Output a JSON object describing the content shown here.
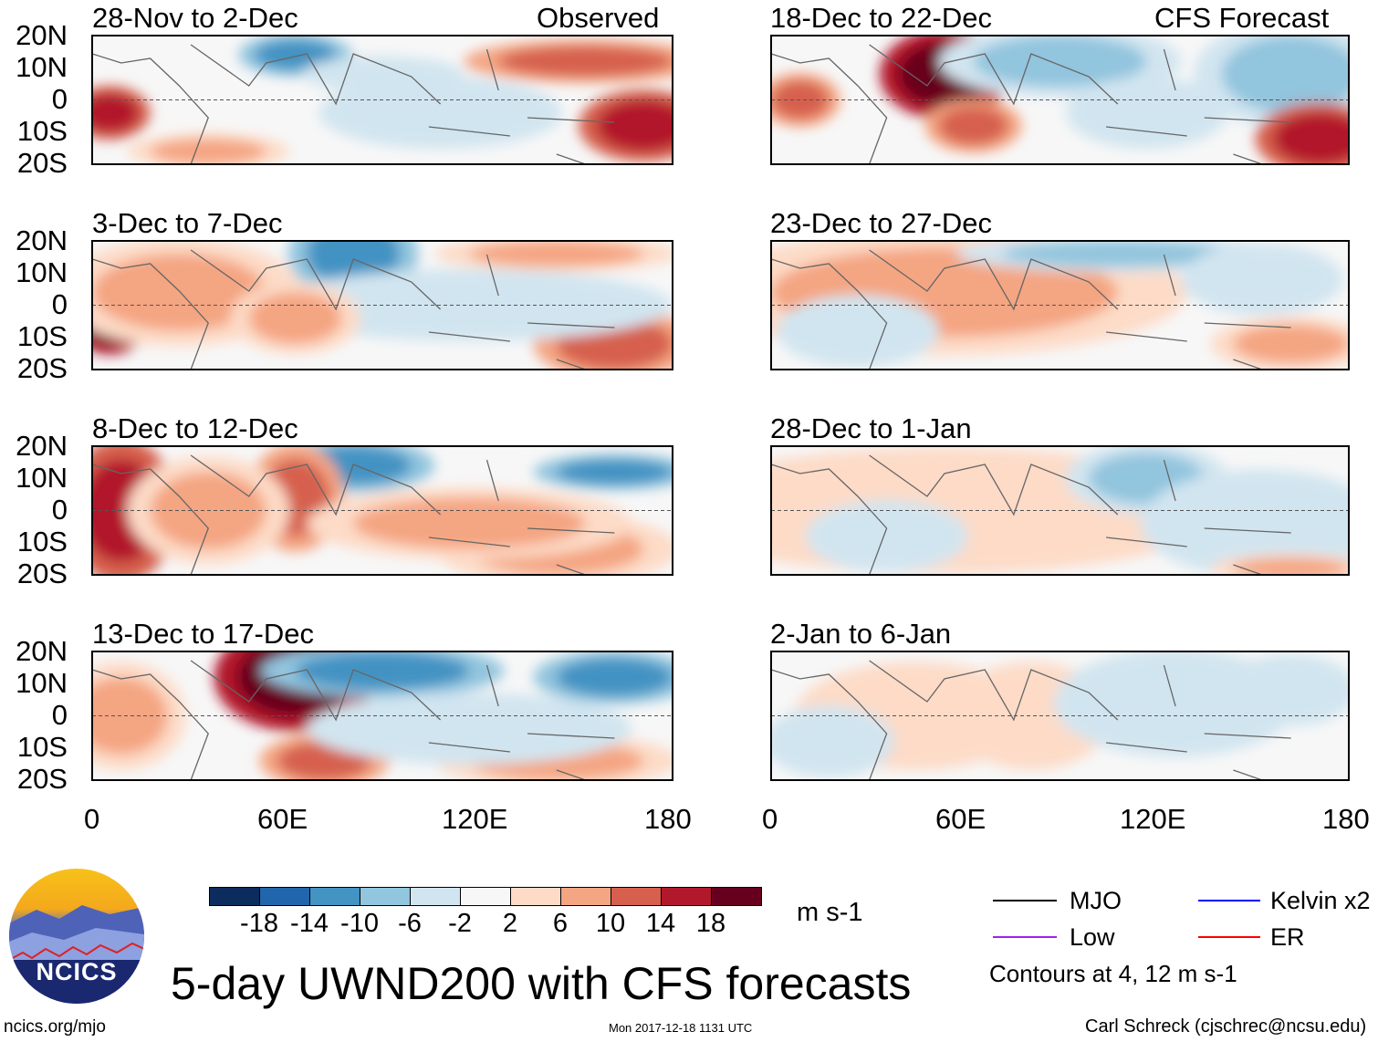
{
  "left_column": {
    "header_right": "Observed",
    "panels": [
      {
        "title": "28-Nov to 2-Dec"
      },
      {
        "title": "3-Dec to 7-Dec"
      },
      {
        "title": "8-Dec to 12-Dec"
      },
      {
        "title": "13-Dec to 17-Dec"
      }
    ]
  },
  "right_column": {
    "header_right": "CFS Forecast",
    "panels": [
      {
        "title": "18-Dec to 22-Dec"
      },
      {
        "title": "23-Dec to 27-Dec"
      },
      {
        "title": "28-Dec to 1-Jan"
      },
      {
        "title": "2-Jan to 6-Jan"
      }
    ]
  },
  "lat_labels": [
    "20N",
    "10N",
    "0",
    "10S",
    "20S"
  ],
  "lon_labels": [
    "0",
    "60E",
    "120E",
    "180"
  ],
  "colorbar": {
    "labels": [
      "-18",
      "-14",
      "-10",
      "-6",
      "-2",
      "2",
      "6",
      "10",
      "14",
      "18"
    ],
    "colors": [
      "#0b2c5c",
      "#2166ac",
      "#4393c3",
      "#92c5de",
      "#d1e5f0",
      "#f7f7f7",
      "#fddbc7",
      "#f4a582",
      "#d6604d",
      "#b2182b",
      "#67001f"
    ],
    "units": "m s-1"
  },
  "legend": {
    "items": [
      {
        "label": "MJO",
        "color": "#000000"
      },
      {
        "label": "Kelvin x2",
        "color": "#0000ff"
      },
      {
        "label": "Low",
        "color": "#a020f0"
      },
      {
        "label": "ER",
        "color": "#ff0000"
      }
    ],
    "note": "Contours at 4, 12 m s-1"
  },
  "title": "5-day UWND200 with CFS forecasts",
  "logo_text": "NCICS",
  "footer": {
    "url": "ncics.org/mjo",
    "timestamp": "Mon 2017-12-18 1131 UTC",
    "credit": "Carl Schreck (cjschrec@ncsu.edu)"
  }
}
